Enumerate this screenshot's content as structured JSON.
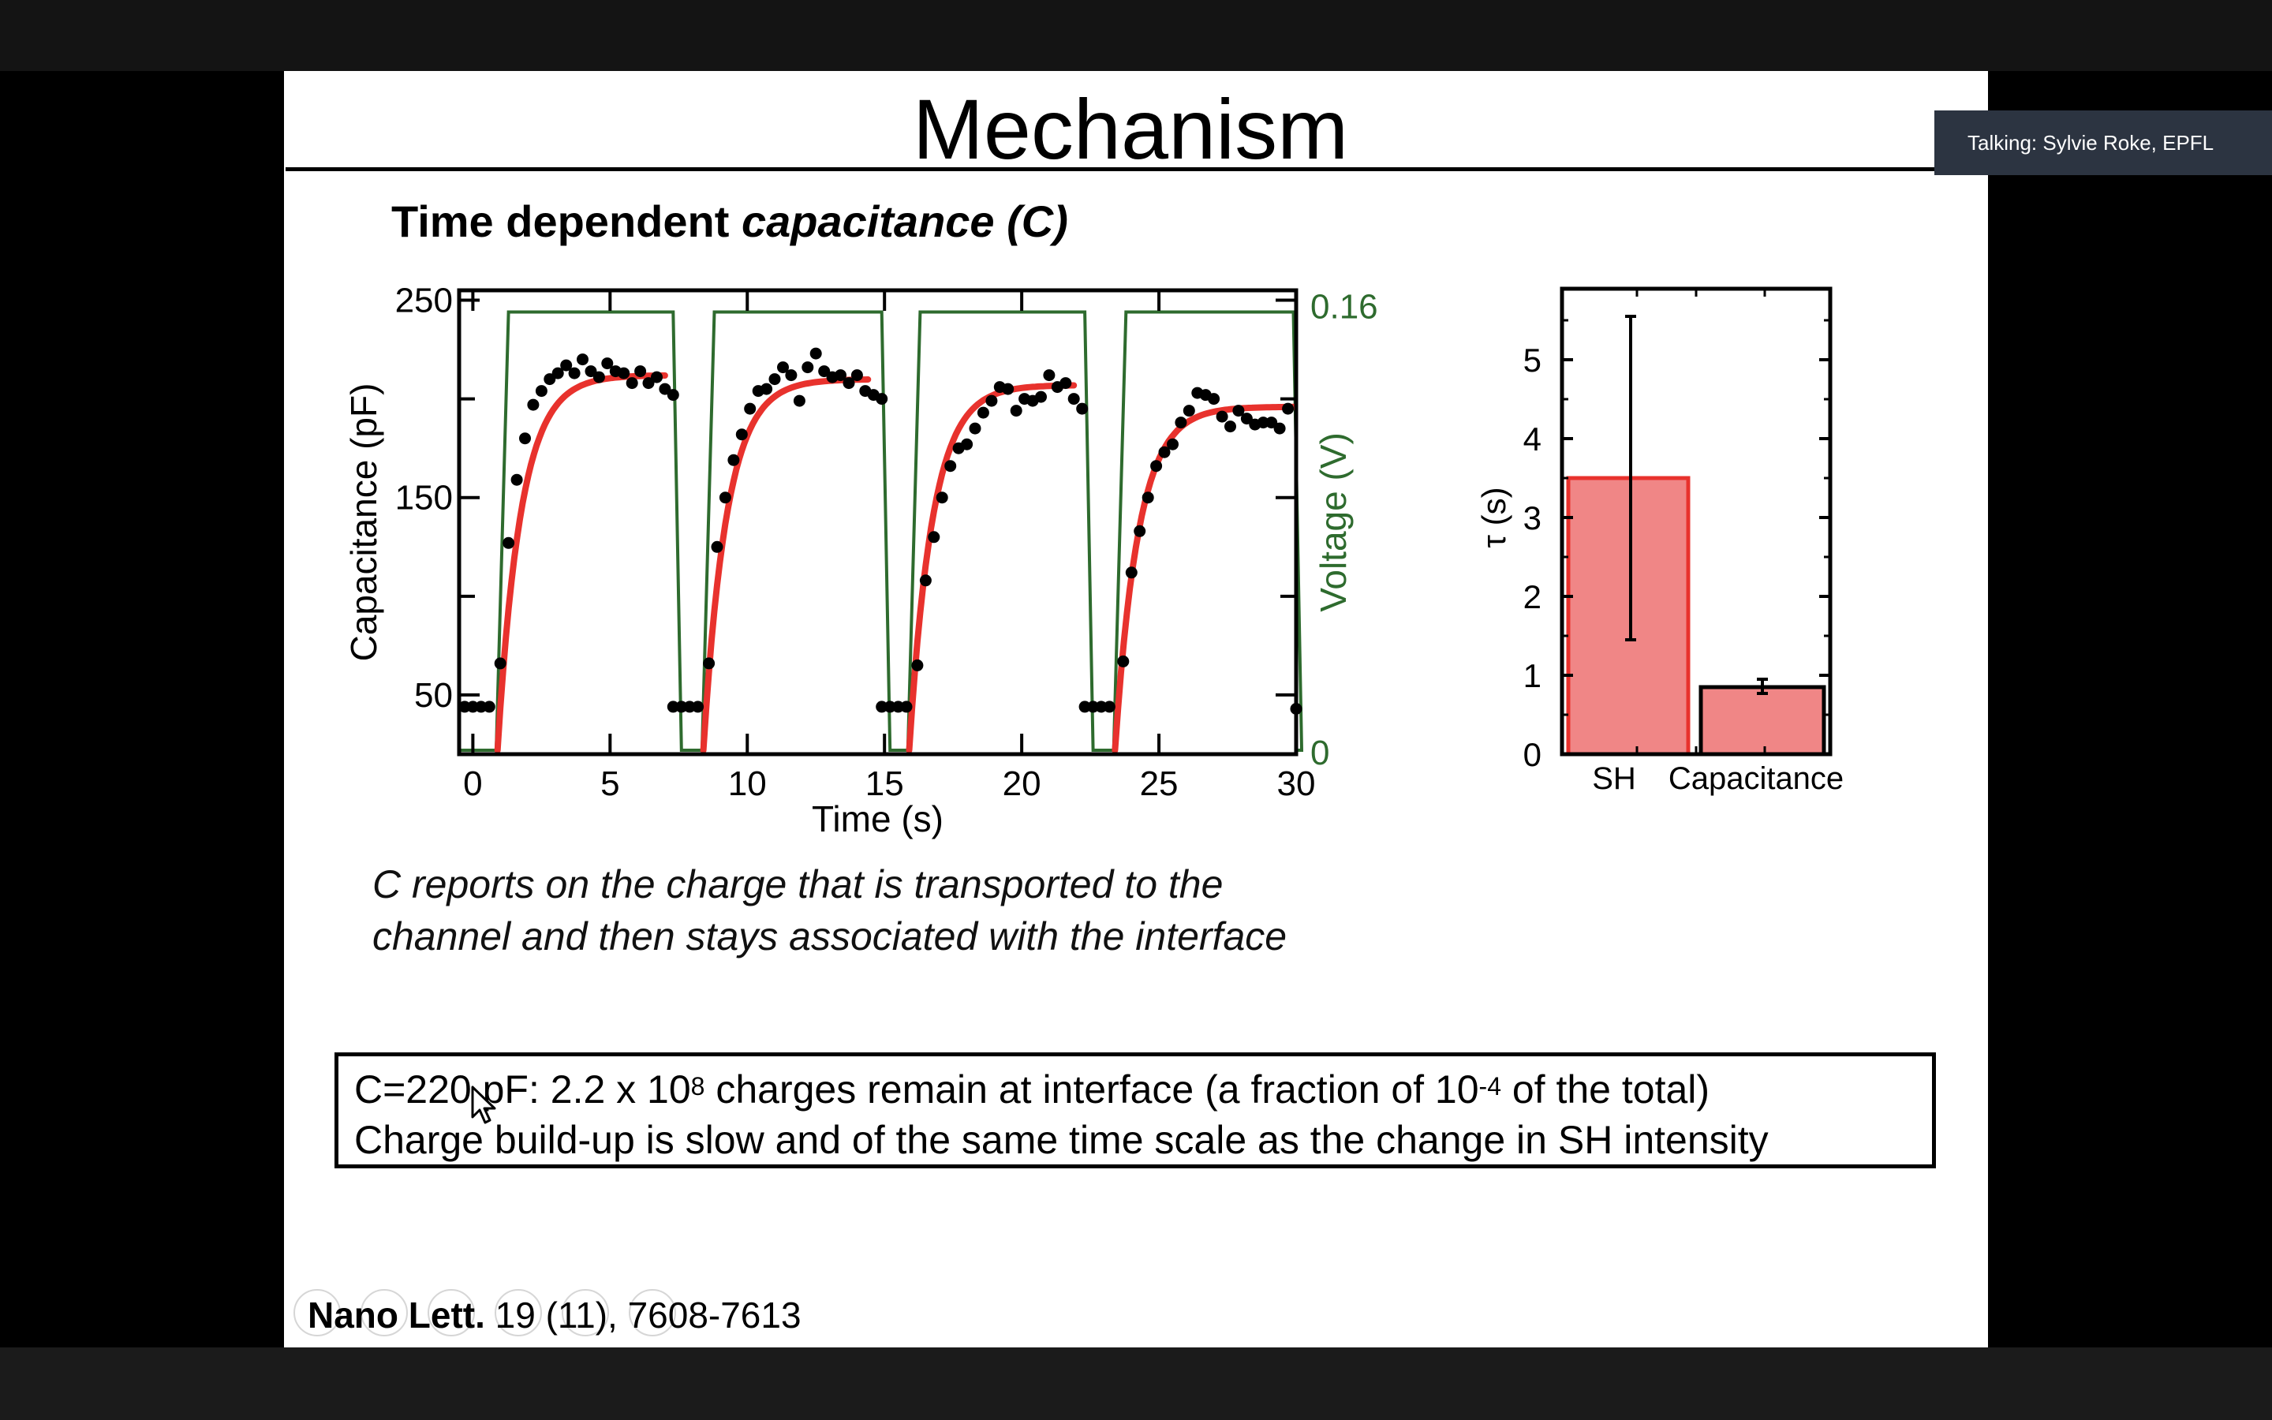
{
  "speaker_indicator": "Talking: Sylvie Roke, EPFL",
  "slide": {
    "title": "Mechanism",
    "subtitle_plain": "Time dependent ",
    "subtitle_italic": "capacitance (C)",
    "note_line1": "C reports on the charge that is transported to the",
    "note_line2": "channel and then stays associated with the interface",
    "box_line1_a": "C=220 pF: 2.2 x 10",
    "box_line1_exp1": "8",
    "box_line1_b": " charges remain at interface (a fraction of 10",
    "box_line1_exp2": "-4",
    "box_line1_c": " of the total)",
    "box_line2": "Charge build-up is slow and of the same time scale as the change in SH intensity",
    "citation_journal": "Nano Lett.",
    "citation_rest": " 19 (11), 7608-7613"
  },
  "chart_data": [
    {
      "type": "scatter",
      "xlabel": "Time (s)",
      "ylabel": "Capacitance (pF)",
      "y2label": "Voltage (V)",
      "xlim": [
        -0.5,
        30
      ],
      "ylim": [
        20,
        255
      ],
      "y2lim": [
        0,
        0.16
      ],
      "xticks": [
        0,
        5,
        10,
        15,
        20,
        25,
        30
      ],
      "yticks": [
        50,
        150,
        250
      ],
      "y2ticks": [
        0,
        0.16
      ],
      "y2tick_labels": [
        "0",
        "0.16"
      ],
      "voltage_color": "#2e6b2e",
      "fit_color": "#e8322d",
      "points_color": "#000000",
      "series": [
        {
          "name": "measured",
          "points": [
            [
              -0.3,
              44
            ],
            [
              0,
              44
            ],
            [
              0.3,
              44
            ],
            [
              0.6,
              44
            ],
            [
              1.0,
              66
            ],
            [
              1.3,
              127
            ],
            [
              1.6,
              159
            ],
            [
              1.9,
              180
            ],
            [
              2.2,
              197
            ],
            [
              2.5,
              204
            ],
            [
              2.8,
              210
            ],
            [
              3.1,
              213
            ],
            [
              3.4,
              217
            ],
            [
              3.7,
              213
            ],
            [
              4.0,
              220
            ],
            [
              4.3,
              214
            ],
            [
              4.6,
              211
            ],
            [
              4.9,
              218
            ],
            [
              5.2,
              214
            ],
            [
              5.5,
              213
            ],
            [
              5.8,
              208
            ],
            [
              6.1,
              214
            ],
            [
              6.4,
              208
            ],
            [
              6.7,
              211
            ],
            [
              7.0,
              205
            ],
            [
              7.3,
              202
            ],
            [
              7.3,
              44
            ],
            [
              7.6,
              44
            ],
            [
              7.9,
              44
            ],
            [
              8.2,
              44
            ],
            [
              8.6,
              66
            ],
            [
              8.9,
              125
            ],
            [
              9.2,
              150
            ],
            [
              9.5,
              169
            ],
            [
              9.8,
              182
            ],
            [
              10.1,
              195
            ],
            [
              10.4,
              204
            ],
            [
              10.7,
              205
            ],
            [
              11.0,
              210
            ],
            [
              11.3,
              216
            ],
            [
              11.6,
              212
            ],
            [
              11.9,
              199
            ],
            [
              12.2,
              216
            ],
            [
              12.5,
              223
            ],
            [
              12.8,
              214
            ],
            [
              13.1,
              211
            ],
            [
              13.4,
              212
            ],
            [
              13.7,
              208
            ],
            [
              14.0,
              212
            ],
            [
              14.3,
              204
            ],
            [
              14.6,
              202
            ],
            [
              14.9,
              200
            ],
            [
              14.9,
              44
            ],
            [
              15.2,
              44
            ],
            [
              15.5,
              44
            ],
            [
              15.8,
              44
            ],
            [
              16.2,
              65
            ],
            [
              16.5,
              108
            ],
            [
              16.8,
              130
            ],
            [
              17.1,
              150
            ],
            [
              17.4,
              166
            ],
            [
              17.7,
              175
            ],
            [
              18.0,
              177
            ],
            [
              18.3,
              185
            ],
            [
              18.6,
              193
            ],
            [
              18.9,
              199
            ],
            [
              19.2,
              206
            ],
            [
              19.5,
              205
            ],
            [
              19.8,
              194
            ],
            [
              20.1,
              200
            ],
            [
              20.4,
              199
            ],
            [
              20.7,
              201
            ],
            [
              21.0,
              212
            ],
            [
              21.3,
              206
            ],
            [
              21.6,
              208
            ],
            [
              21.9,
              200
            ],
            [
              22.2,
              195
            ],
            [
              22.3,
              44
            ],
            [
              22.6,
              44
            ],
            [
              22.9,
              44
            ],
            [
              23.2,
              44
            ],
            [
              23.7,
              67
            ],
            [
              24.0,
              112
            ],
            [
              24.3,
              133
            ],
            [
              24.6,
              150
            ],
            [
              24.9,
              166
            ],
            [
              25.2,
              173
            ],
            [
              25.5,
              177
            ],
            [
              25.8,
              188
            ],
            [
              26.1,
              194
            ],
            [
              26.4,
              203
            ],
            [
              26.7,
              202
            ],
            [
              27.0,
              200
            ],
            [
              27.3,
              191
            ],
            [
              27.6,
              186
            ],
            [
              27.9,
              194
            ],
            [
              28.2,
              190
            ],
            [
              28.5,
              187
            ],
            [
              28.8,
              188
            ],
            [
              29.1,
              188
            ],
            [
              29.4,
              185
            ],
            [
              29.7,
              195
            ],
            [
              30.0,
              43
            ]
          ]
        }
      ],
      "fit_segments": [
        {
          "t0": 0.9,
          "t1": 7.0,
          "plateau": 212
        },
        {
          "t0": 8.4,
          "t1": 14.4,
          "plateau": 210
        },
        {
          "t0": 15.9,
          "t1": 21.9,
          "plateau": 207
        },
        {
          "t0": 23.4,
          "t1": 29.9,
          "plateau": 196
        }
      ],
      "voltage_on_intervals": [
        [
          1.0,
          7.3
        ],
        [
          8.5,
          14.9
        ],
        [
          16.0,
          22.3
        ],
        [
          23.5,
          29.9
        ]
      ]
    },
    {
      "type": "bar",
      "ylabel": "τ (s)",
      "categories": [
        "SH",
        "Capacitance"
      ],
      "values": [
        3.5,
        0.85
      ],
      "errors": [
        [
          1.45,
          5.55
        ],
        [
          0.77,
          0.95
        ]
      ],
      "ylim": [
        0,
        5.9
      ],
      "yticks": [
        0,
        1,
        2,
        3,
        4,
        5
      ],
      "bar_fill": "#f08686",
      "bar_stroke": [
        "#e8322d",
        "#000000"
      ]
    }
  ]
}
